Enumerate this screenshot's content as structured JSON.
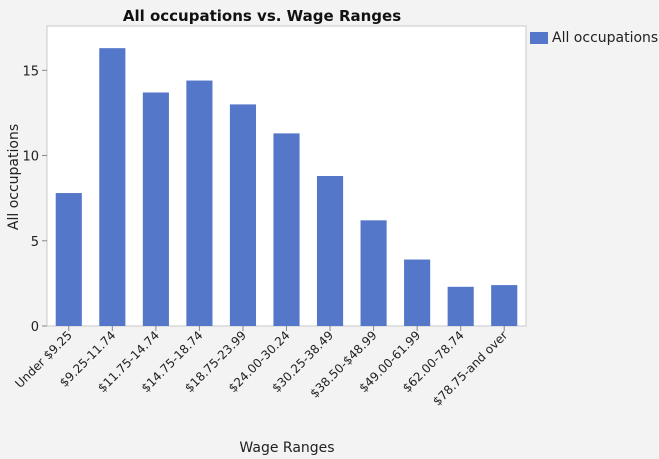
{
  "chart_data": {
    "type": "bar",
    "title": "All occupations vs. Wage Ranges",
    "xlabel": "Wage Ranges",
    "ylabel": "All occupations",
    "categories": [
      "Under $9.25",
      "$9.25-11.74",
      "$11.75-14.74",
      "$14.75-18.74",
      "$18.75-23.99",
      "$24.00-30.24",
      "$30.25-38.49",
      "$38.50-$48.99",
      "$49.00-61.99",
      "$62.00-78.74",
      "$78.75-and over"
    ],
    "series": [
      {
        "name": "All occupations",
        "color": "#5577c9",
        "values": [
          7.8,
          16.3,
          13.7,
          14.4,
          13.0,
          11.3,
          8.8,
          6.2,
          3.9,
          2.3,
          2.4
        ]
      }
    ],
    "ylim": [
      0,
      17.6
    ],
    "yticks": [
      0,
      5,
      10,
      15
    ],
    "grid": false,
    "legend": "top-right"
  }
}
